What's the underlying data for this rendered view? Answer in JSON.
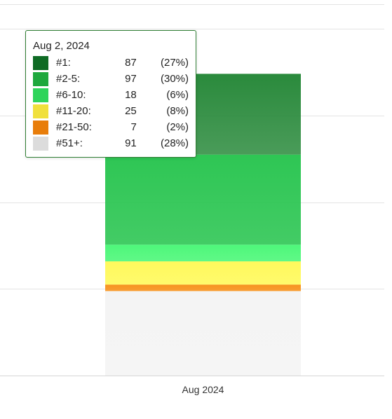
{
  "chart_data": {
    "type": "bar",
    "stacked": true,
    "categories": [
      "Aug 2024"
    ],
    "series": [
      {
        "name": "#1:",
        "values": [
          87
        ],
        "percent": "(27%)",
        "color": "#2a8a3c"
      },
      {
        "name": "#2-5:",
        "values": [
          97
        ],
        "percent": "(30%)",
        "color": "#2ec654"
      },
      {
        "name": "#6-10:",
        "values": [
          18
        ],
        "percent": "(6%)",
        "color": "#4ef77a"
      },
      {
        "name": "#11-20:",
        "values": [
          25
        ],
        "percent": "(8%)",
        "color": "#fff95c"
      },
      {
        "name": "#21-50:",
        "values": [
          7
        ],
        "percent": "(2%)",
        "color": "#f7931e"
      },
      {
        "name": "#51+:",
        "values": [
          91
        ],
        "percent": "(28%)",
        "color": "#f4f4f4"
      }
    ],
    "legend_colors": [
      "#0f6b24",
      "#1ea83d",
      "#2ed45a",
      "#f0e03c",
      "#e87d0a",
      "#dcdcdc"
    ],
    "ylim": [
      0,
      400
    ],
    "grid": true,
    "title": "",
    "xlabel": "",
    "ylabel": ""
  },
  "tooltip": {
    "date": "Aug 2, 2024"
  }
}
